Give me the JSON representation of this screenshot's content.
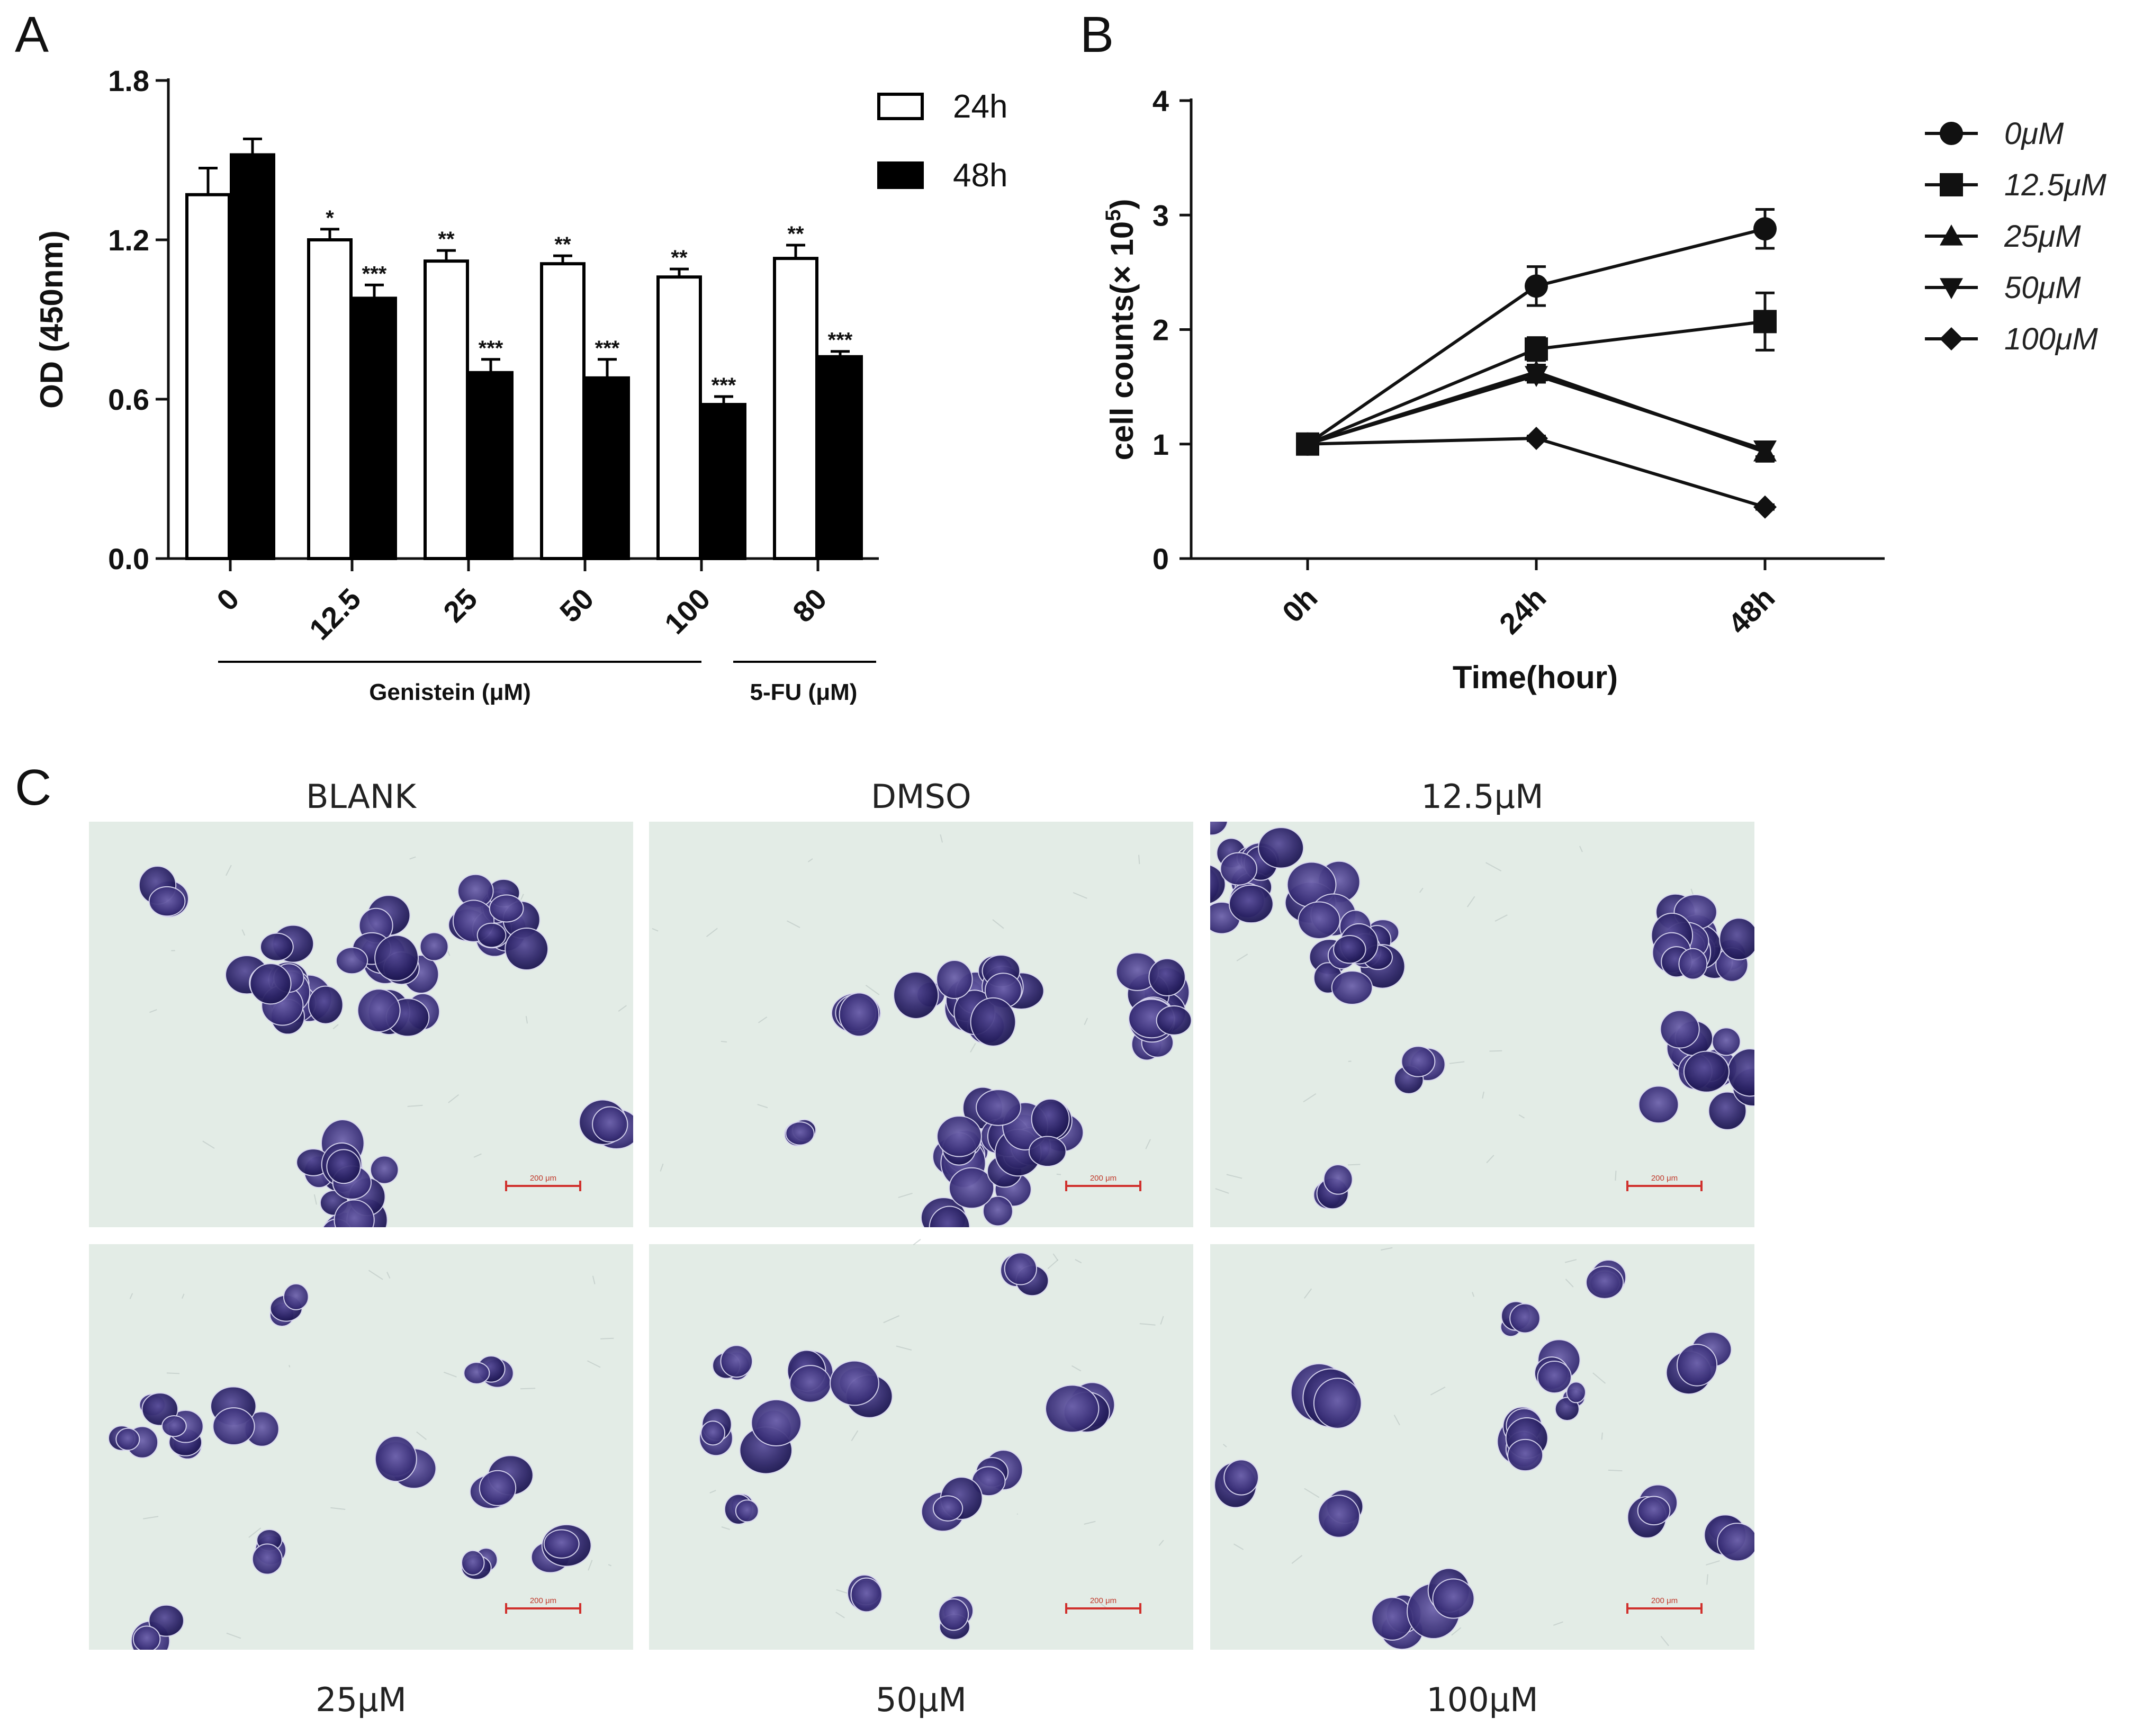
{
  "panels": {
    "a": "A",
    "b": "B",
    "c": "C"
  },
  "chart_data": [
    {
      "type": "bar",
      "panel": "A",
      "ylabel": "OD (450nm)",
      "ylim": [
        0,
        1.8
      ],
      "yticks": [
        "0.0",
        "0.6",
        "1.2",
        "1.8"
      ],
      "categories": [
        "0",
        "12.5",
        "25",
        "50",
        "100",
        "80"
      ],
      "series": [
        {
          "name": "24h",
          "fill": "#ffffff",
          "values": [
            1.37,
            1.2,
            1.12,
            1.11,
            1.06,
            1.13
          ],
          "errors": [
            0.1,
            0.04,
            0.04,
            0.03,
            0.03,
            0.05
          ],
          "significance": [
            "",
            "*",
            "**",
            "**",
            "**",
            "**"
          ]
        },
        {
          "name": "48h",
          "fill": "#000000",
          "values": [
            1.52,
            0.98,
            0.7,
            0.68,
            0.58,
            0.76
          ],
          "errors": [
            0.06,
            0.05,
            0.05,
            0.07,
            0.03,
            0.02
          ],
          "significance": [
            "",
            "***",
            "***",
            "***",
            "***",
            "***"
          ]
        }
      ],
      "group_labels": [
        {
          "text": "Genistein (μM)",
          "from": 0,
          "to": 4
        },
        {
          "text": "5-FU (μM)",
          "from": 5,
          "to": 5
        }
      ],
      "legend_position": "top-right"
    },
    {
      "type": "line",
      "panel": "B",
      "xlabel": "Time(hour)",
      "ylabel_main": "cell counts(× 10",
      "ylabel_sup": "5",
      "ylabel_end": ")",
      "x": [
        "0h",
        "24h",
        "48h"
      ],
      "ylim": [
        0,
        4
      ],
      "yticks": [
        "0",
        "1",
        "2",
        "3",
        "4"
      ],
      "series": [
        {
          "name": "0μM",
          "marker": "circle",
          "values": [
            1.0,
            2.38,
            2.88
          ],
          "errors": [
            0.03,
            0.17,
            0.17
          ]
        },
        {
          "name": "12.5μM",
          "marker": "square",
          "values": [
            1.0,
            1.83,
            2.07
          ],
          "errors": [
            0.03,
            0.1,
            0.25
          ]
        },
        {
          "name": "25μM",
          "marker": "triangle-up",
          "values": [
            1.0,
            1.63,
            0.93
          ],
          "errors": [
            0.03,
            0.06,
            0.08
          ]
        },
        {
          "name": "50μM",
          "marker": "triangle-down",
          "values": [
            1.0,
            1.6,
            0.95
          ],
          "errors": [
            0.03,
            0.06,
            0.06
          ]
        },
        {
          "name": "100μM",
          "marker": "diamond",
          "values": [
            1.0,
            1.05,
            0.45
          ],
          "errors": [
            0.02,
            0.02,
            0.02
          ]
        }
      ],
      "legend_position": "right"
    }
  ],
  "micrographs": [
    {
      "caption": "BLANK",
      "scale": "200 μm"
    },
    {
      "caption": "DMSO",
      "scale": "200 μm"
    },
    {
      "caption": "12.5μM",
      "scale": "200 μm"
    },
    {
      "caption": "25μM",
      "scale": "200 μm"
    },
    {
      "caption": "50μM",
      "scale": "200 μm"
    },
    {
      "caption": "100μM",
      "scale": "200 μm"
    }
  ]
}
